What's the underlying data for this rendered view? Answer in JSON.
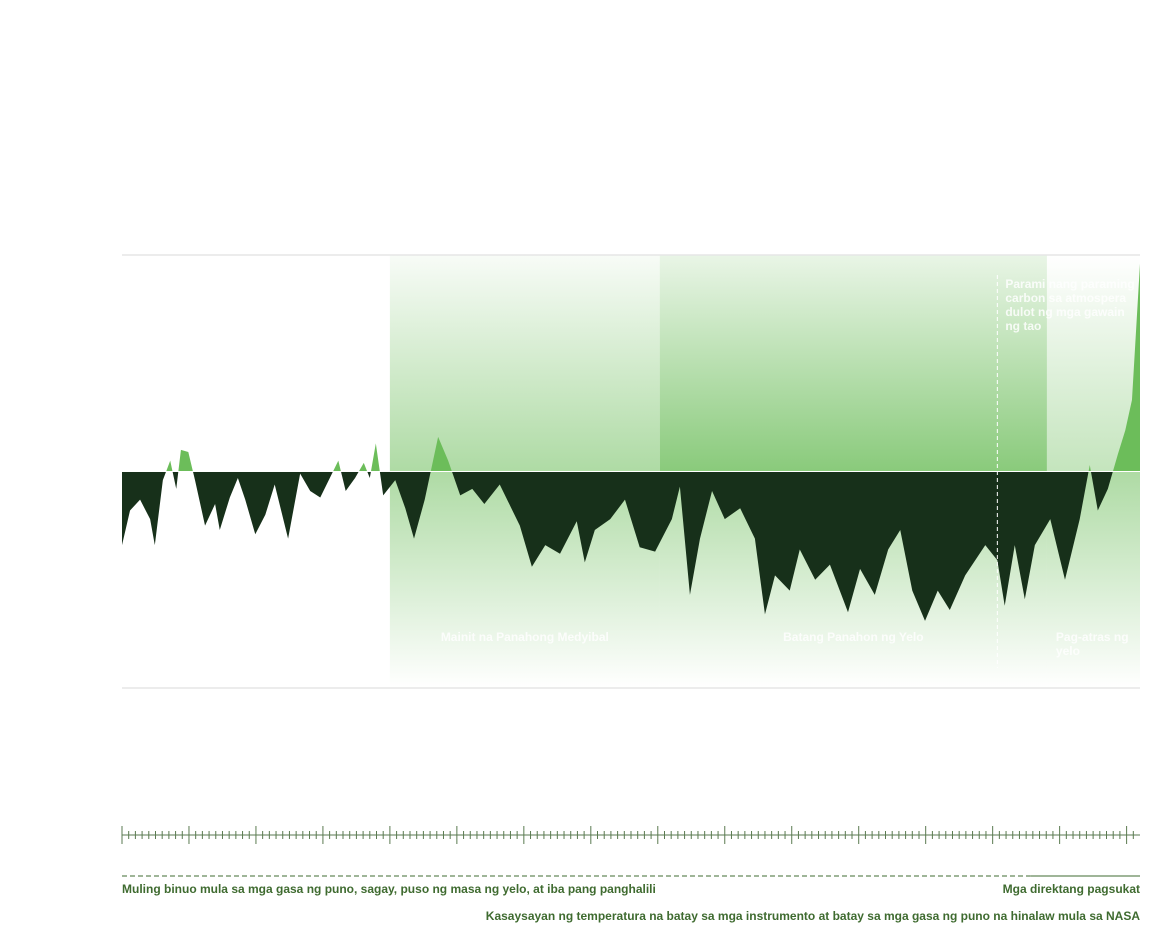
{
  "chart_data": {
    "type": "area",
    "x": [
      500,
      512,
      527,
      542,
      549,
      561,
      572,
      581,
      588,
      599,
      609,
      624,
      639,
      646,
      661,
      673,
      684,
      699,
      714,
      728,
      748,
      766,
      781,
      796,
      823,
      834,
      848,
      861,
      870,
      879,
      890,
      908,
      923,
      936,
      952,
      972,
      987,
      1005,
      1023,
      1041,
      1064,
      1094,
      1112,
      1132,
      1154,
      1179,
      1191,
      1206,
      1229,
      1251,
      1273,
      1296,
      1321,
      1333,
      1348,
      1363,
      1381,
      1400,
      1423,
      1445,
      1460,
      1475,
      1497,
      1512,
      1535,
      1557,
      1584,
      1602,
      1624,
      1644,
      1662,
      1680,
      1699,
      1718,
      1736,
      1759,
      1789,
      1807,
      1818,
      1833,
      1848,
      1863,
      1886,
      1908,
      1930,
      1945,
      1957,
      1972,
      1987,
      1998,
      2008,
      2020
    ],
    "values": [
      -0.34,
      -0.18,
      -0.13,
      -0.22,
      -0.34,
      -0.04,
      0.05,
      -0.08,
      0.1,
      0.09,
      -0.04,
      -0.25,
      -0.15,
      -0.27,
      -0.12,
      -0.03,
      -0.13,
      -0.29,
      -0.2,
      -0.06,
      -0.31,
      -0.01,
      -0.09,
      -0.12,
      0.05,
      -0.09,
      -0.03,
      0.04,
      -0.03,
      0.13,
      -0.11,
      -0.04,
      -0.17,
      -0.31,
      -0.13,
      0.16,
      0.05,
      -0.11,
      -0.08,
      -0.15,
      -0.06,
      -0.25,
      -0.44,
      -0.34,
      -0.38,
      -0.23,
      -0.42,
      -0.27,
      -0.22,
      -0.13,
      -0.35,
      -0.37,
      -0.22,
      -0.07,
      -0.57,
      -0.31,
      -0.09,
      -0.22,
      -0.17,
      -0.31,
      -0.66,
      -0.48,
      -0.55,
      -0.36,
      -0.5,
      -0.43,
      -0.65,
      -0.45,
      -0.57,
      -0.36,
      -0.27,
      -0.55,
      -0.69,
      -0.55,
      -0.64,
      -0.48,
      -0.34,
      -0.41,
      -0.62,
      -0.34,
      -0.59,
      -0.34,
      -0.22,
      -0.5,
      -0.22,
      0.03,
      -0.18,
      -0.08,
      0.08,
      0.19,
      0.33,
      0.96
    ],
    "xlim": [
      500,
      2020
    ],
    "ylim": [
      -1,
      1
    ],
    "colors": {
      "positive": "#6cbd5a",
      "negative": "#17301a"
    },
    "periods": [
      {
        "label": "Mainit na Panahong Medyibal",
        "start": 900,
        "end": 1303
      },
      {
        "label": "Batang Panahon ng Yelo",
        "start": 1303,
        "end": 1881
      },
      {
        "label": "Pag-atras ng yelo",
        "start": 1881,
        "end": 2020
      }
    ],
    "annotation": {
      "text": "Parami nang paraming carbon sa atmospera dulot ng mga gawain ng tao",
      "x": 1807
    },
    "xticks": [
      500,
      600,
      700,
      800,
      900,
      1000,
      1100,
      1200,
      1300,
      1400,
      1500,
      1600,
      1700,
      1800,
      1900,
      2000
    ],
    "xminorticks": [
      510,
      520,
      530,
      540,
      550,
      560,
      570,
      580,
      590,
      610,
      620,
      630,
      640,
      650,
      660,
      670,
      680,
      690,
      710,
      720,
      730,
      740,
      750,
      760,
      770,
      780,
      790,
      810,
      820,
      830,
      840,
      850,
      860,
      870,
      880,
      890,
      910,
      920,
      930,
      940,
      950,
      960,
      970,
      980,
      990,
      1010,
      1020,
      1030,
      1040,
      1050,
      1060,
      1070,
      1080,
      1090,
      1110,
      1120,
      1130,
      1140,
      1150,
      1160,
      1170,
      1180,
      1190,
      1210,
      1220,
      1230,
      1240,
      1250,
      1260,
      1270,
      1280,
      1290,
      1310,
      1320,
      1330,
      1340,
      1350,
      1360,
      1370,
      1380,
      1390,
      1410,
      1420,
      1430,
      1440,
      1450,
      1460,
      1470,
      1480,
      1490,
      1510,
      1520,
      1530,
      1540,
      1550,
      1560,
      1570,
      1580,
      1590,
      1610,
      1620,
      1630,
      1640,
      1650,
      1660,
      1670,
      1680,
      1690,
      1710,
      1720,
      1730,
      1740,
      1750,
      1760,
      1770,
      1780,
      1790,
      1810,
      1820,
      1830,
      1840,
      1850,
      1860,
      1870,
      1880,
      1890,
      1910,
      1920,
      1930,
      1940,
      1950,
      1960,
      1970,
      1980,
      1990,
      2010
    ],
    "sources": [
      {
        "label": "Muling binuo mula sa mga gasa ng puno, sagay, puso ng masa ng yelo, at iba pang panghalili",
        "start": 500,
        "end": 1856
      },
      {
        "label": "Mga direktang pagsukat",
        "start": 1856,
        "end": 2020
      }
    ],
    "caption": "Kasaysayan ng temperatura na batay sa mga instrumento at batay sa mga gasa ng puno na hinalaw mula sa NASA"
  }
}
